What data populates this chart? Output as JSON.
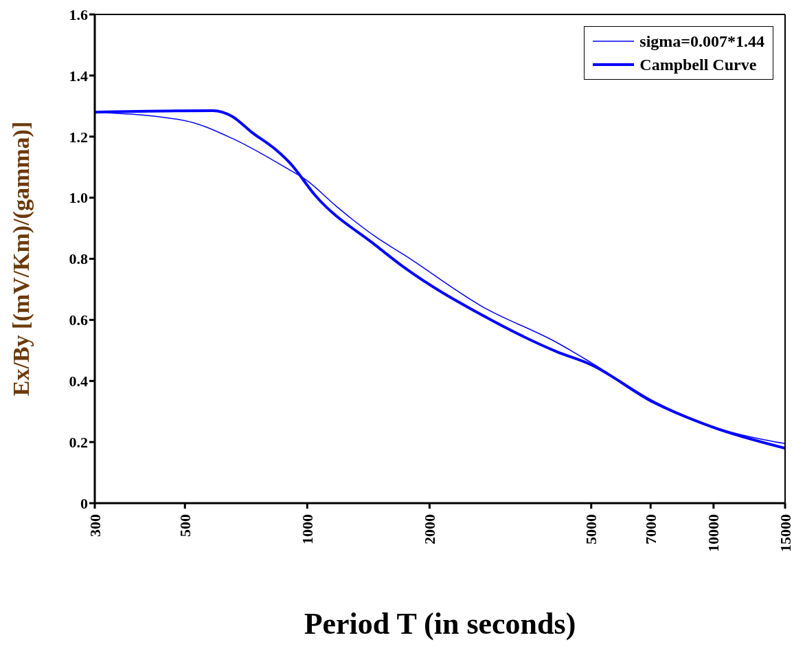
{
  "chart_data": {
    "type": "line",
    "xlabel": "Period T (in seconds)",
    "ylabel": "Ex/By [(mV/Km)/(gamma)]",
    "log": "x",
    "xlim": [
      300,
      15000
    ],
    "xticks": [
      300,
      500,
      1000,
      2000,
      5000,
      7000,
      10000,
      15000
    ],
    "ylim": [
      0,
      1.6
    ],
    "yticks": [
      0,
      0.2,
      0.4,
      0.6,
      0.8,
      {
        "value": 1,
        "label": "1.0"
      },
      1.2,
      1.4,
      1.6
    ],
    "legend": "top right",
    "marker": "none",
    "series": [
      {
        "name": "sigma=0.007*1.44",
        "color": "#0000ff",
        "x": [
          300,
          497,
          654,
          881,
          992,
          1186,
          1477,
          1731,
          2692,
          4112,
          5000,
          7143,
          10000,
          15000
        ],
        "values": [
          1.28,
          1.253,
          1.194,
          1.1,
          1.059,
          0.969,
          0.871,
          0.813,
          0.644,
          0.526,
          0.46,
          0.333,
          0.25,
          0.195
        ]
      },
      {
        "name": "Campbell Curve",
        "color": "#0000ff",
        "x": [
          300,
          586,
          654,
          729,
          837,
          909,
          1047,
          1477,
          1731,
          2692,
          4112,
          5000,
          7143,
          10000,
          15000
        ],
        "values": [
          1.28,
          1.285,
          1.266,
          1.215,
          1.157,
          1.112,
          1.007,
          0.843,
          0.772,
          0.616,
          0.496,
          0.453,
          0.329,
          0.248,
          0.18
        ]
      }
    ]
  }
}
